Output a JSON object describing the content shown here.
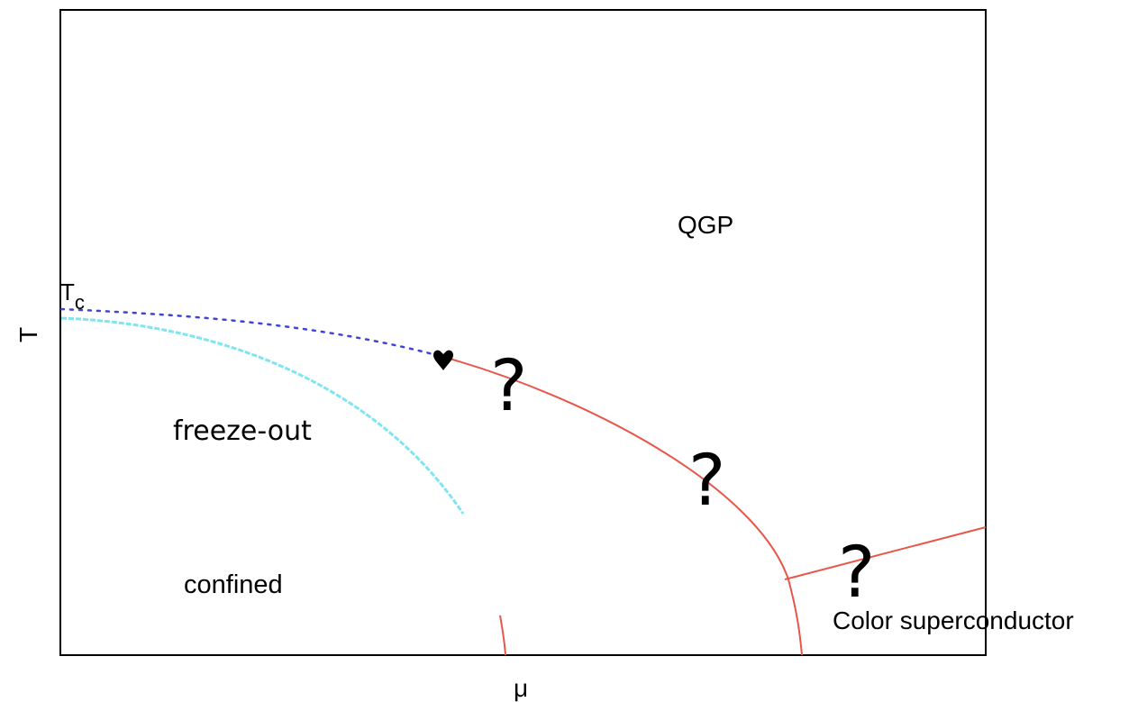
{
  "axes": {
    "x_label": "μ",
    "y_label": "T"
  },
  "labels": {
    "tc_main": "T",
    "tc_sub": "c",
    "qgp": "QGP",
    "freeze_out": "freeze-out",
    "confined": "confined",
    "color_superconductor": "Color superconductor",
    "question_mark": "?"
  },
  "colors": {
    "frame": "#000000",
    "transition_line": "#e8564a",
    "crossover_dotted": "#3f45d6",
    "freeze_out_curve": "#7fe6f0",
    "critical_point": "#000000",
    "text": "#000000"
  }
}
